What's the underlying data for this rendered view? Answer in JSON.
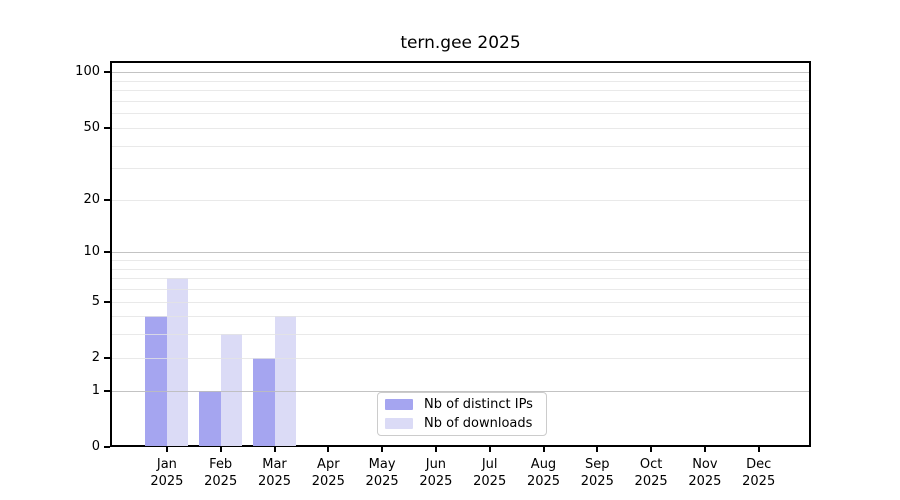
{
  "chart_data": {
    "type": "bar",
    "title": "tern.gee 2025",
    "categories": [
      "Jan 2025",
      "Feb 2025",
      "Mar 2025",
      "Apr 2025",
      "May 2025",
      "Jun 2025",
      "Jul 2025",
      "Aug 2025",
      "Sep 2025",
      "Oct 2025",
      "Nov 2025",
      "Dec 2025"
    ],
    "series": [
      {
        "name": "Nb of distinct IPs",
        "color": "#a5a5f0",
        "values": [
          4,
          1,
          2,
          0,
          0,
          0,
          0,
          0,
          0,
          0,
          0,
          0
        ]
      },
      {
        "name": "Nb of downloads",
        "color": "#dbdbf6",
        "values": [
          7,
          3,
          4,
          0,
          0,
          0,
          0,
          0,
          0,
          0,
          0,
          0
        ]
      }
    ],
    "xlabel": "",
    "ylabel": "",
    "yscale": "log1p",
    "yticks": [
      0,
      1,
      2,
      5,
      10,
      20,
      50,
      100
    ],
    "ylim": [
      0,
      115
    ],
    "grid": "horizontal",
    "grid_major_values": [
      1,
      10,
      100
    ],
    "legend_position": "lower center inside",
    "frame_color": "#000000",
    "gridline_minor_color": "#e9e9e9",
    "gridline_major_color": "#c4c4c4"
  }
}
